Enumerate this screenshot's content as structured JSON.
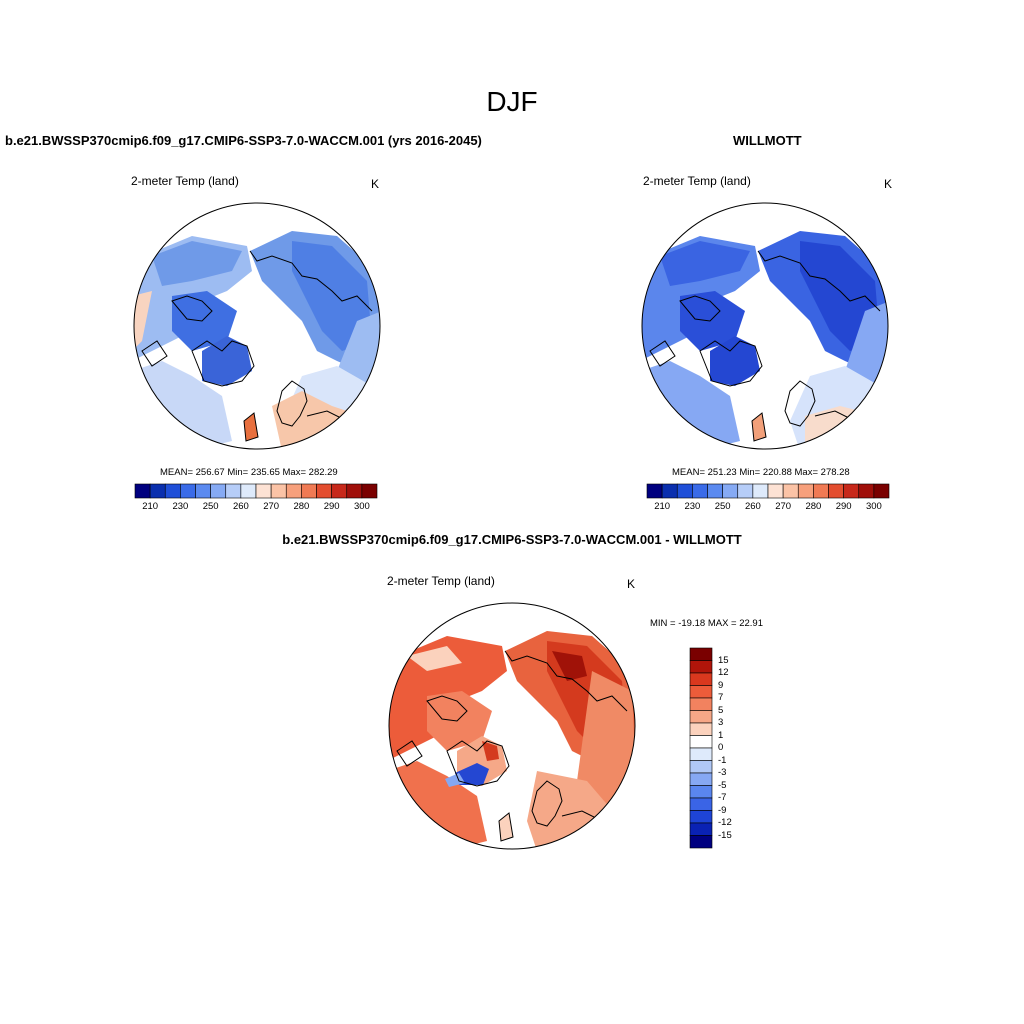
{
  "title": "DJF",
  "panels": {
    "model": {
      "title": "b.e21.BWSSP370cmip6.f09_g17.CMIP6-SSP3-7.0-WACCM.001 (yrs 2016-2045)",
      "variable": "2-meter Temp (land)",
      "units": "K",
      "stats": "MEAN= 256.67  Min= 235.65  Max= 282.29"
    },
    "obs": {
      "title": "WILLMOTT",
      "variable": "2-meter Temp (land)",
      "units": "K",
      "stats": "MEAN= 251.23  Min= 220.88  Max= 278.28"
    },
    "diff": {
      "title": "b.e21.BWSSP370cmip6.f09_g17.CMIP6-SSP3-7.0-WACCM.001 - WILLMOTT",
      "variable": "2-meter Temp (land)",
      "units": "K",
      "stats": "MIN = -19.18 MAX =  22.91"
    }
  },
  "abs_colorbar": {
    "colors": [
      "#00007f",
      "#0a2fae",
      "#1f4fd8",
      "#3a6be8",
      "#5b8af0",
      "#86aaf4",
      "#b6cdf8",
      "#deeafb",
      "#fde2d4",
      "#fbc3a6",
      "#f7a07c",
      "#f07a54",
      "#e34d2f",
      "#c7281a",
      "#a00f0a",
      "#7a0000"
    ],
    "labels": [
      "210",
      "230",
      "250",
      "260",
      "270",
      "280",
      "290",
      "300"
    ]
  },
  "diff_colorbar": {
    "colors": [
      "#7a0000",
      "#b0150a",
      "#d9381e",
      "#ec5c3a",
      "#f2825f",
      "#f6a787",
      "#fbd2bd",
      "#ffffff",
      "#deeafb",
      "#b0c8f6",
      "#86a8f3",
      "#5a86ef",
      "#3a64e6",
      "#1e44d6",
      "#0a22b4",
      "#000080"
    ],
    "labels": [
      "15",
      "12",
      "9",
      "7",
      "5",
      "3",
      "1",
      "0",
      "-1",
      "-3",
      "-5",
      "-7",
      "-9",
      "-12",
      "-15"
    ]
  }
}
